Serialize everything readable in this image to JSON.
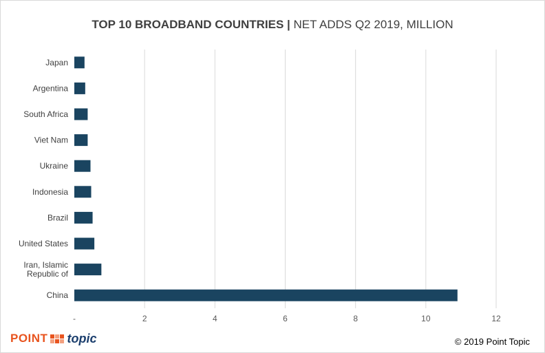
{
  "title": {
    "main": "TOP 10 BROADBAND COUNTRIES |",
    "sub": "NET ADDS Q2 2019, MILLION"
  },
  "chart_data": {
    "type": "bar",
    "orientation": "horizontal",
    "categories": [
      "Japan",
      "Argentina",
      "South Africa",
      "Viet Nam",
      "Ukraine",
      "Indonesia",
      "Brazil",
      "United States",
      "Iran, Islamic Republic of",
      "China"
    ],
    "category_lines": [
      [
        "Japan"
      ],
      [
        "Argentina"
      ],
      [
        "South Africa"
      ],
      [
        "Viet Nam"
      ],
      [
        "Ukraine"
      ],
      [
        "Indonesia"
      ],
      [
        "Brazil"
      ],
      [
        "United States"
      ],
      [
        "Iran, Islamic",
        "Republic of"
      ],
      [
        "China"
      ]
    ],
    "values": [
      0.29,
      0.31,
      0.38,
      0.38,
      0.46,
      0.48,
      0.52,
      0.57,
      0.77,
      10.9
    ],
    "xlim": [
      0,
      12
    ],
    "xticks": [
      0,
      2,
      4,
      6,
      8,
      10,
      12
    ],
    "xtick_labels": [
      "-",
      "2",
      "4",
      "6",
      "8",
      "10",
      "12"
    ],
    "grid": "vertical",
    "legend": "none",
    "bar_color": "#1a4460"
  },
  "footer": {
    "logo_point": "POINT",
    "logo_topic": "topic",
    "copyright": "© 2019 Point Topic"
  }
}
